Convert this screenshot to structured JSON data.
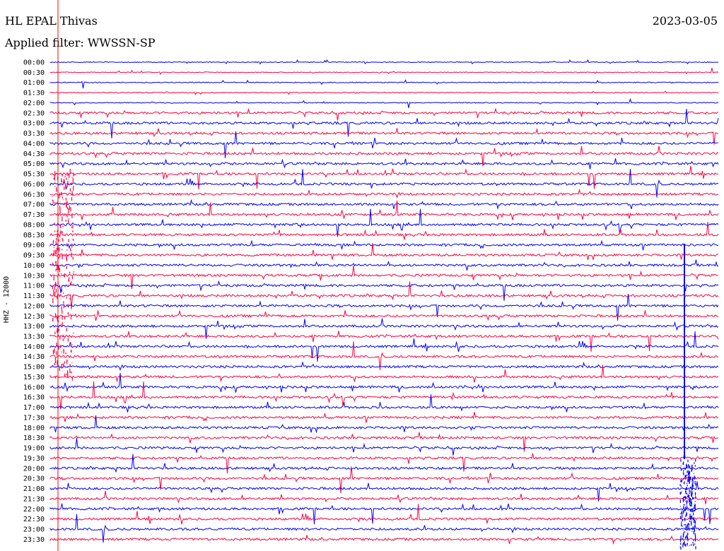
{
  "header": {
    "station": "HL EPAL Thivas",
    "date": "2023-03-05",
    "filter": "Applied filter: WWSSN-SP"
  },
  "colors": {
    "trace_a": "#0000ff",
    "trace_b": "#ff0040",
    "marker": "#ff0000"
  },
  "chart_data": {
    "type": "line",
    "ylabel": "HHZ - 12000",
    "rows": [
      "00:00",
      "00:30",
      "01:00",
      "01:30",
      "02:00",
      "02:30",
      "03:00",
      "03:30",
      "04:00",
      "04:30",
      "05:00",
      "05:30",
      "06:00",
      "06:30",
      "07:00",
      "07:30",
      "08:00",
      "08:30",
      "09:00",
      "09:30",
      "10:00",
      "10:30",
      "11:00",
      "11:30",
      "12:00",
      "12:30",
      "13:00",
      "13:30",
      "14:00",
      "14:30",
      "15:00",
      "15:30",
      "16:00",
      "16:30",
      "17:00",
      "17:30",
      "18:00",
      "18:30",
      "19:00",
      "19:30",
      "20:00",
      "20:30",
      "21:00",
      "21:30",
      "22:00",
      "22:30",
      "23:00",
      "23:30"
    ],
    "row_colors": [
      "trace_a",
      "trace_b"
    ],
    "grid": false
  }
}
